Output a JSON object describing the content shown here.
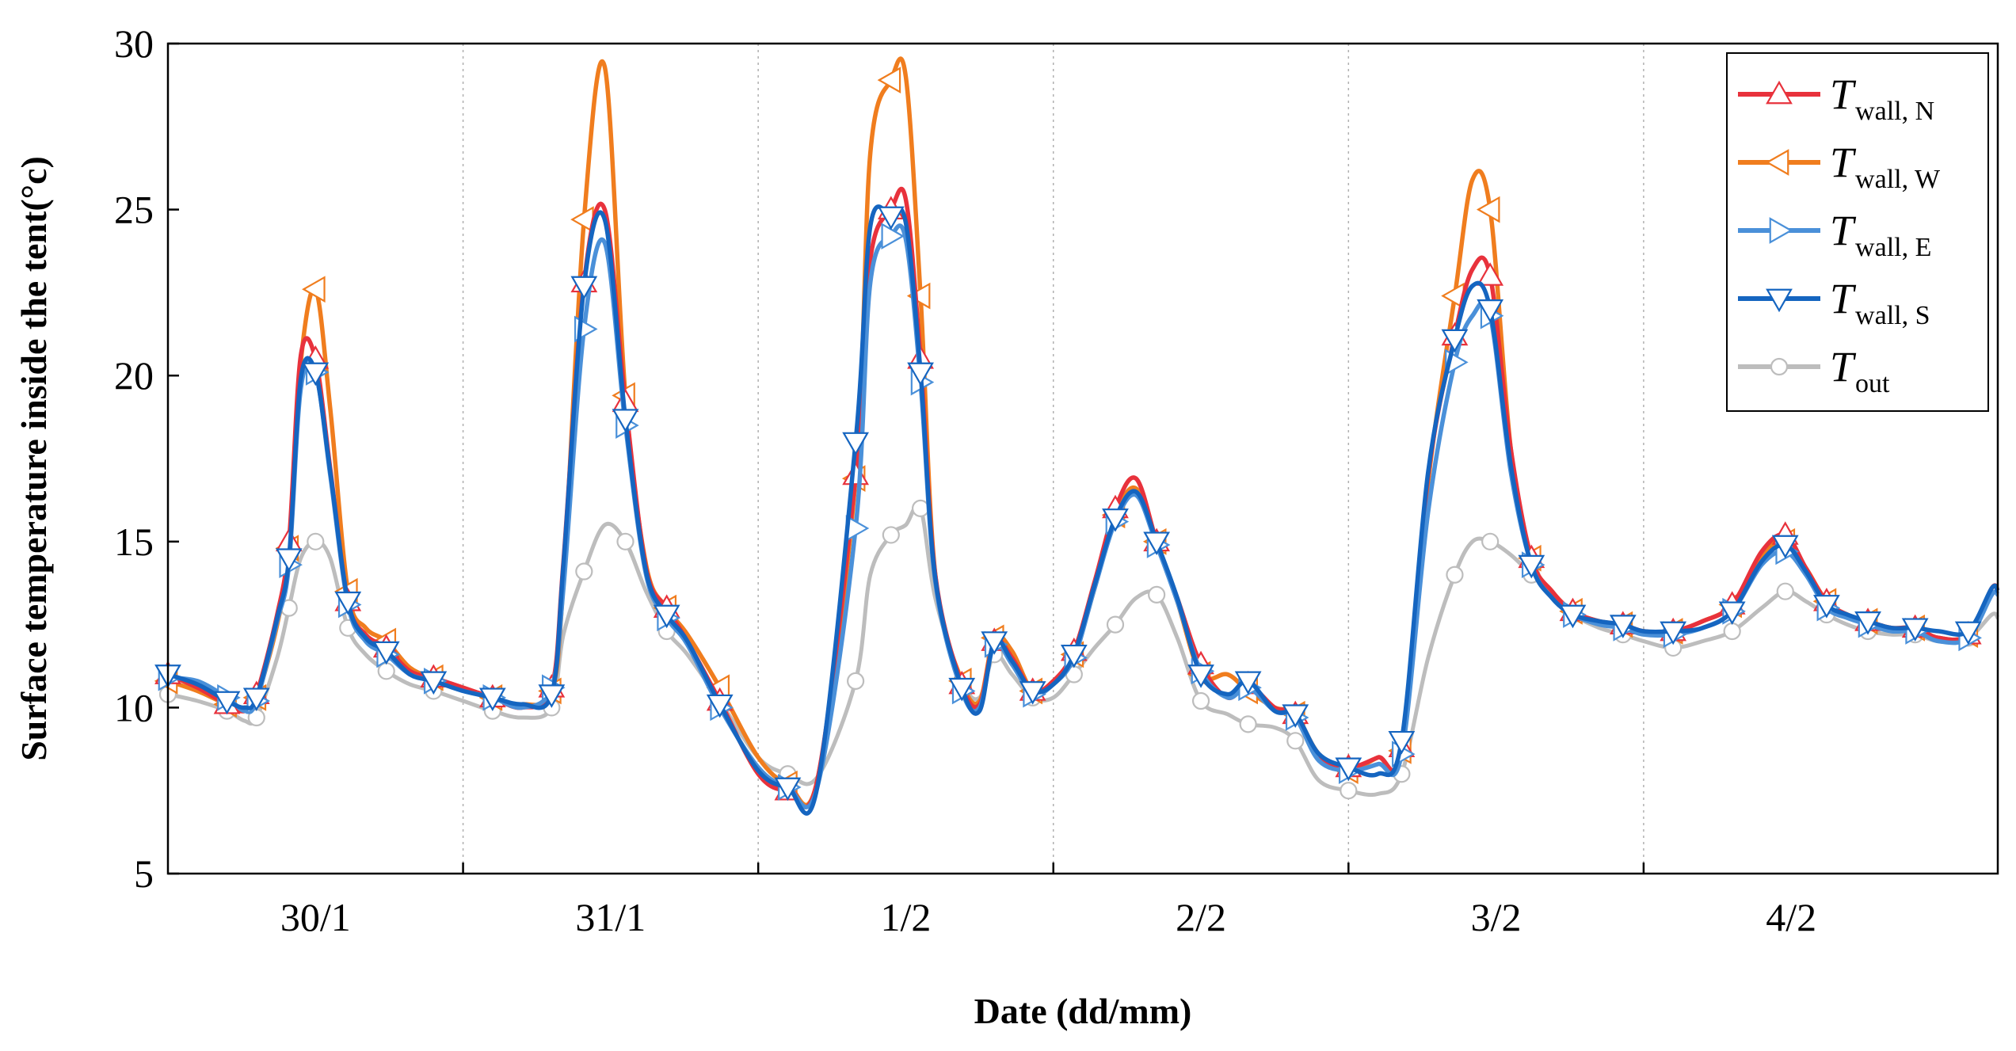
{
  "chart_data": {
    "type": "line",
    "xlabel": "Date (dd/mm)",
    "ylabel": "Surface temperature inside the tent(°c)",
    "xlim": [
      0,
      6.2
    ],
    "ylim": [
      5,
      30
    ],
    "yticks": [
      5,
      10,
      15,
      20,
      25,
      30
    ],
    "day_labels": [
      {
        "label": "30/1",
        "x": 0.5
      },
      {
        "label": "31/1",
        "x": 1.5
      },
      {
        "label": "1/2",
        "x": 2.5
      },
      {
        "label": "2/2",
        "x": 3.5
      },
      {
        "label": "3/2",
        "x": 4.5
      },
      {
        "label": "4/2",
        "x": 5.5
      }
    ],
    "day_separators": [
      1,
      2,
      3,
      4,
      5
    ],
    "grid": "vertical dotted at day boundaries",
    "legend_position": "top-right",
    "x": [
      0.0,
      0.1,
      0.2,
      0.26,
      0.3,
      0.37,
      0.41,
      0.45,
      0.5,
      0.55,
      0.61,
      0.67,
      0.74,
      0.82,
      0.9,
      1.0,
      1.1,
      1.2,
      1.3,
      1.34,
      1.41,
      1.48,
      1.55,
      1.62,
      1.69,
      1.76,
      1.87,
      2.0,
      2.1,
      2.2,
      2.33,
      2.38,
      2.45,
      2.5,
      2.55,
      2.6,
      2.69,
      2.75,
      2.8,
      2.86,
      2.93,
      3.0,
      3.07,
      3.14,
      3.21,
      3.28,
      3.35,
      3.42,
      3.5,
      3.59,
      3.66,
      3.75,
      3.82,
      3.9,
      4.0,
      4.1,
      4.18,
      4.27,
      4.36,
      4.42,
      4.48,
      4.55,
      4.62,
      4.69,
      4.76,
      4.85,
      4.93,
      5.0,
      5.1,
      5.2,
      5.3,
      5.4,
      5.48,
      5.55,
      5.62,
      5.69,
      5.76,
      5.84,
      5.92,
      6.0,
      6.1,
      6.18,
      6.2
    ],
    "series": [
      {
        "name": "T wall, N",
        "color": "#e8323c",
        "marker": "triangle-up",
        "values": [
          11.0,
          10.6,
          10.1,
          9.9,
          10.4,
          12.8,
          15.0,
          20.6,
          20.5,
          17.2,
          13.2,
          12.2,
          11.8,
          11.1,
          10.9,
          10.6,
          10.3,
          10.0,
          10.6,
          14.4,
          22.8,
          25.0,
          19.2,
          14.2,
          13.0,
          12.0,
          10.2,
          8.0,
          7.5,
          7.8,
          17.0,
          23.5,
          25.0,
          25.3,
          20.5,
          14.0,
          10.7,
          10.1,
          12.0,
          11.5,
          10.5,
          10.8,
          11.7,
          13.8,
          16.0,
          16.9,
          15.0,
          13.3,
          11.3,
          10.3,
          10.7,
          10.0,
          9.8,
          8.5,
          8.2,
          8.5,
          8.8,
          17.0,
          21.2,
          23.2,
          23.0,
          17.8,
          14.5,
          13.5,
          12.9,
          12.6,
          12.5,
          12.3,
          12.3,
          12.6,
          13.1,
          14.7,
          15.2,
          14.2,
          13.2,
          12.8,
          12.6,
          12.4,
          12.4,
          12.1,
          12.2,
          13.6,
          13.5
        ]
      },
      {
        "name": "T wall, W",
        "color": "#f07d1e",
        "marker": "triangle-left",
        "values": [
          10.8,
          10.5,
          10.1,
          10.0,
          10.3,
          12.5,
          14.8,
          20.4,
          22.6,
          19.0,
          13.5,
          12.4,
          12.0,
          11.2,
          10.9,
          10.6,
          10.3,
          10.1,
          10.5,
          13.8,
          24.7,
          29.3,
          19.4,
          14.3,
          13.0,
          12.2,
          10.6,
          8.5,
          7.7,
          7.8,
          16.9,
          26.7,
          28.9,
          29.0,
          22.4,
          14.0,
          10.8,
          10.2,
          12.1,
          11.7,
          10.5,
          10.8,
          11.6,
          13.6,
          15.8,
          16.6,
          15.0,
          13.2,
          11.0,
          11.0,
          10.5,
          10.0,
          9.8,
          8.6,
          8.1,
          8.5,
          8.7,
          16.8,
          22.4,
          25.9,
          25.0,
          17.8,
          14.5,
          13.5,
          12.9,
          12.6,
          12.5,
          12.3,
          12.3,
          12.6,
          13.1,
          14.6,
          15.0,
          14.2,
          13.2,
          12.8,
          12.6,
          12.4,
          12.4,
          12.1,
          12.2,
          13.6,
          13.5
        ]
      },
      {
        "name": "T wall, E",
        "color": "#4a90d9",
        "marker": "triangle-right",
        "values": [
          10.9,
          10.8,
          10.3,
          9.9,
          10.2,
          12.6,
          14.3,
          19.6,
          20.1,
          17.0,
          13.1,
          12.0,
          11.6,
          11.0,
          10.8,
          10.5,
          10.3,
          10.0,
          10.6,
          13.6,
          21.4,
          24.0,
          18.5,
          14.0,
          12.7,
          11.9,
          10.0,
          8.2,
          7.6,
          7.6,
          15.4,
          22.8,
          24.2,
          24.1,
          19.8,
          13.8,
          10.5,
          10.0,
          11.9,
          11.3,
          10.4,
          10.7,
          11.5,
          13.6,
          15.6,
          16.4,
          14.9,
          13.2,
          11.1,
          10.3,
          10.6,
          9.9,
          9.7,
          8.4,
          8.1,
          8.3,
          8.6,
          15.9,
          20.4,
          21.8,
          21.8,
          17.1,
          14.3,
          13.3,
          12.8,
          12.5,
          12.4,
          12.2,
          12.2,
          12.4,
          12.9,
          14.3,
          14.7,
          14.0,
          13.0,
          12.7,
          12.5,
          12.3,
          12.3,
          12.0,
          12.1,
          13.4,
          13.4
        ]
      },
      {
        "name": "T wall, S",
        "color": "#1565c0",
        "marker": "triangle-down",
        "values": [
          11.0,
          10.7,
          10.2,
          10.0,
          10.3,
          12.7,
          14.5,
          19.9,
          20.1,
          17.1,
          13.2,
          12.1,
          11.7,
          11.0,
          10.8,
          10.5,
          10.3,
          10.1,
          10.4,
          14.3,
          22.7,
          24.7,
          18.7,
          14.1,
          12.8,
          12.0,
          10.1,
          8.1,
          7.6,
          7.6,
          18.0,
          24.5,
          24.8,
          24.6,
          20.1,
          13.9,
          10.6,
          9.9,
          12.0,
          11.4,
          10.5,
          10.7,
          11.6,
          13.7,
          15.7,
          16.5,
          15.0,
          13.3,
          11.0,
          10.4,
          10.8,
          9.9,
          9.8,
          8.6,
          8.2,
          8.0,
          9.0,
          17.1,
          21.1,
          22.7,
          22.0,
          17.3,
          14.3,
          13.3,
          12.8,
          12.6,
          12.5,
          12.3,
          12.3,
          12.4,
          12.9,
          14.4,
          14.9,
          14.1,
          13.1,
          12.8,
          12.6,
          12.4,
          12.4,
          12.3,
          12.3,
          13.6,
          13.5
        ]
      },
      {
        "name": "T out",
        "color": "#bdbdbd",
        "marker": "circle",
        "values": [
          10.4,
          10.2,
          9.9,
          9.6,
          9.7,
          11.5,
          13.0,
          14.5,
          15.0,
          14.5,
          12.4,
          11.6,
          11.1,
          10.7,
          10.5,
          10.2,
          9.9,
          9.7,
          10.0,
          12.2,
          14.1,
          15.5,
          15.0,
          13.5,
          12.3,
          11.6,
          10.2,
          8.5,
          8.0,
          7.9,
          10.8,
          14.0,
          15.2,
          15.5,
          16.0,
          13.3,
          10.8,
          10.3,
          11.6,
          11.0,
          10.3,
          10.3,
          11.0,
          11.8,
          12.5,
          13.3,
          13.4,
          12.1,
          10.2,
          9.8,
          9.5,
          9.4,
          9.0,
          7.8,
          7.5,
          7.4,
          8.0,
          11.5,
          14.0,
          15.0,
          15.0,
          14.6,
          14.0,
          13.4,
          12.8,
          12.4,
          12.2,
          12.0,
          11.8,
          12.0,
          12.3,
          13.0,
          13.5,
          13.2,
          12.8,
          12.5,
          12.3,
          12.2,
          12.2,
          12.0,
          12.1,
          12.8,
          12.7
        ]
      }
    ]
  },
  "legend": [
    {
      "main": "T",
      "sub": "wall, N"
    },
    {
      "main": "T",
      "sub": "wall, W"
    },
    {
      "main": "T",
      "sub": "wall, E"
    },
    {
      "main": "T",
      "sub": "wall, S"
    },
    {
      "main": "T",
      "sub": "out"
    }
  ]
}
